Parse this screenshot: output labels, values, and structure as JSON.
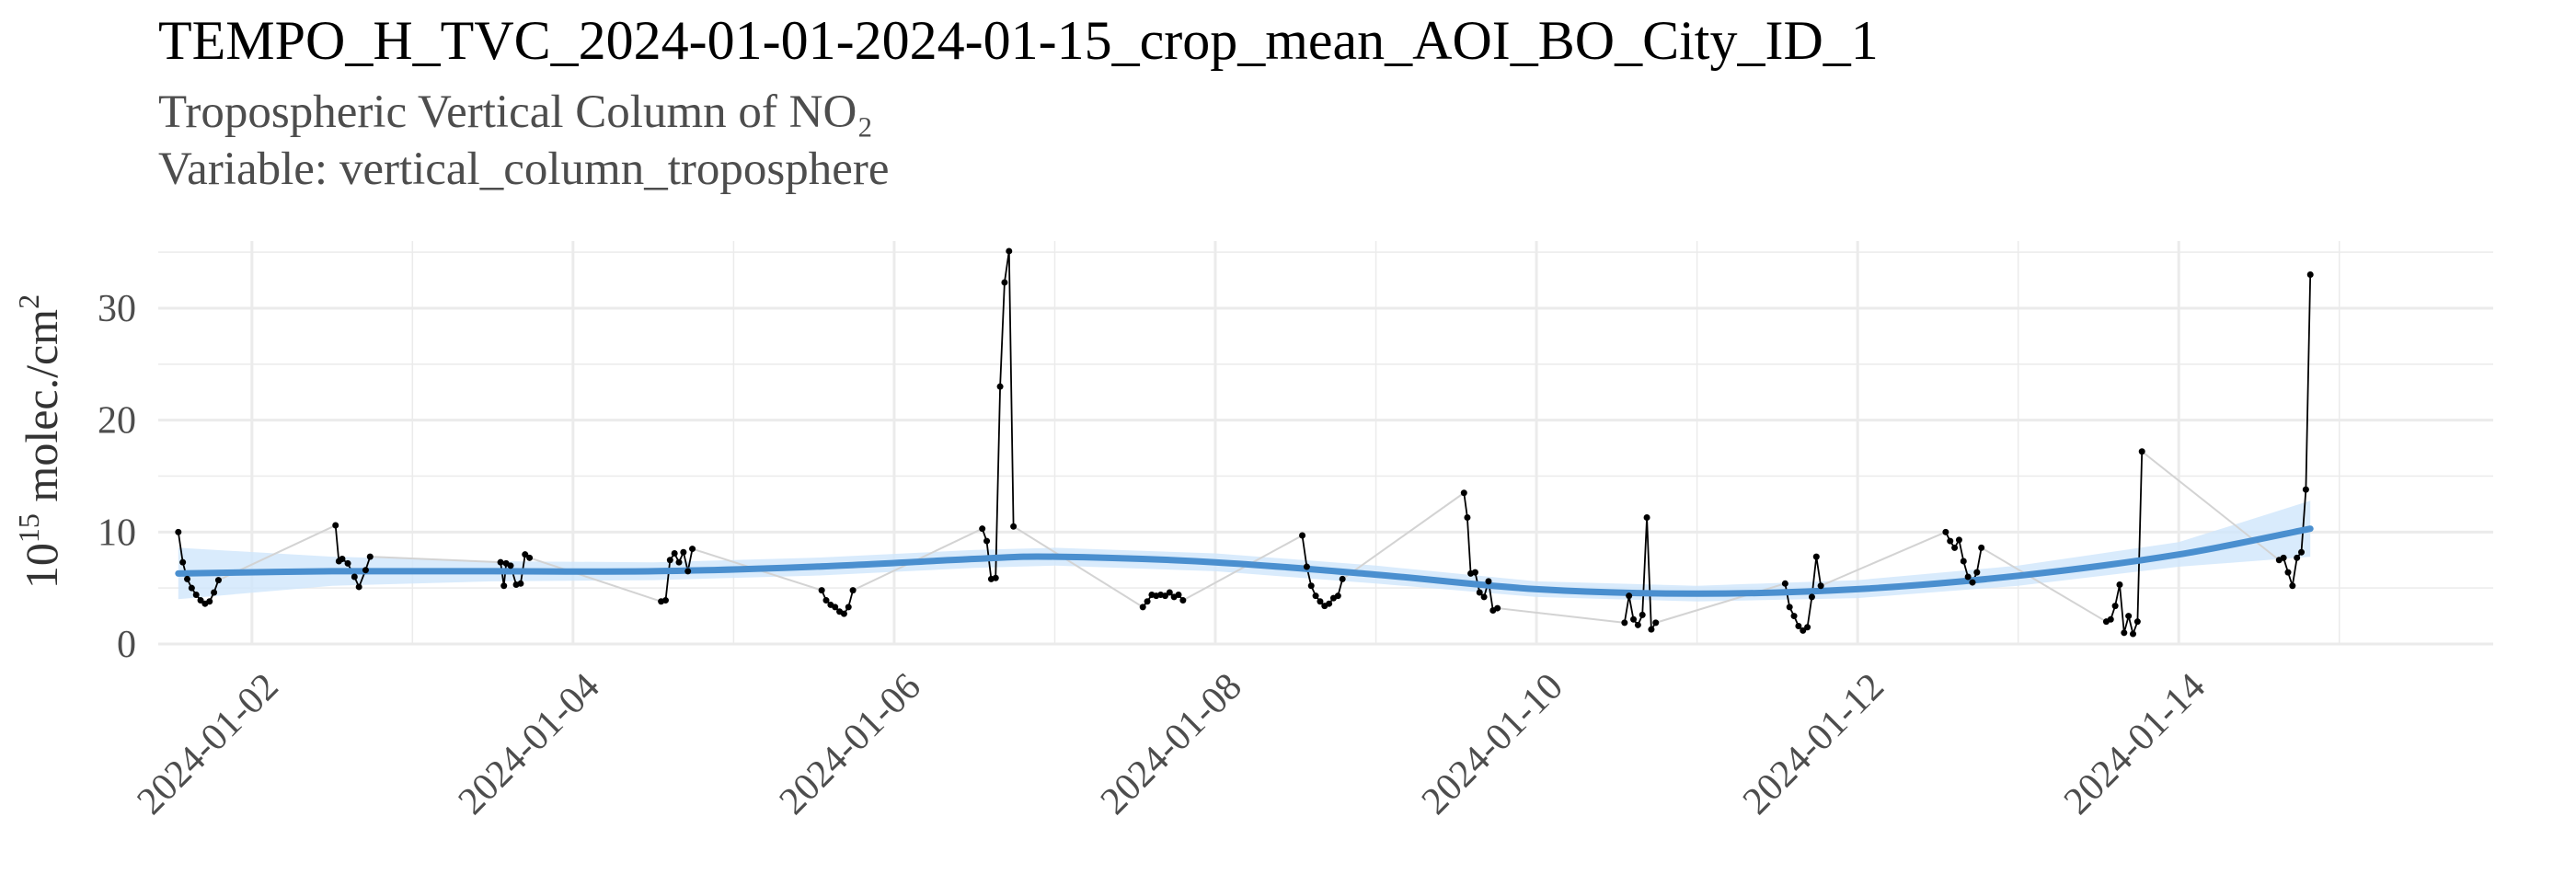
{
  "chart_data": {
    "type": "line",
    "title": "TEMPO_H_TVC_2024-01-01-2024-01-15_crop_mean_AOI_BO_City_ID_1",
    "subtitle_line1": "Tropospheric Vertical Column of NO₂",
    "subtitle_line2": "Variable: vertical_column_troposphere",
    "ylabel_base": "10",
    "ylabel_exp": "15",
    "ylabel_unit": " molec./cm",
    "ylabel_unit_exp": "2",
    "x_axis": {
      "type": "date",
      "min": "2024-01-01T10:00",
      "max": "2024-01-15T23:00"
    },
    "y_axis": {
      "min": 0,
      "max": 36,
      "ticks": [
        0,
        10,
        20,
        30
      ]
    },
    "x_ticks": [
      "2024-01-02",
      "2024-01-04",
      "2024-01-06",
      "2024-01-08",
      "2024-01-10",
      "2024-01-12",
      "2024-01-14"
    ],
    "colors": {
      "observed": "#000000",
      "gap": "#d3d3d3",
      "smooth": "#4a8fcf",
      "band": "#cfe6fb",
      "grid": "#ebebeb"
    },
    "series": [
      {
        "points": [
          [
            "2024-01-01T13:00",
            10.0
          ],
          [
            "2024-01-01T13:40",
            7.3
          ],
          [
            "2024-01-01T14:20",
            5.8
          ],
          [
            "2024-01-01T15:00",
            5.0
          ],
          [
            "2024-01-01T15:40",
            4.4
          ],
          [
            "2024-01-01T16:20",
            3.9
          ],
          [
            "2024-01-01T17:00",
            3.6
          ],
          [
            "2024-01-01T17:40",
            3.8
          ],
          [
            "2024-01-01T18:20",
            4.6
          ],
          [
            "2024-01-01T19:00",
            5.7
          ]
        ]
      },
      {
        "points": [
          [
            "2024-01-02T12:30",
            10.6
          ],
          [
            "2024-01-02T13:00",
            7.4
          ],
          [
            "2024-01-02T13:30",
            7.6
          ],
          [
            "2024-01-02T14:20",
            7.2
          ],
          [
            "2024-01-02T15:20",
            6.0
          ],
          [
            "2024-01-02T16:00",
            5.1
          ],
          [
            "2024-01-02T17:00",
            6.6
          ],
          [
            "2024-01-02T17:40",
            7.8
          ]
        ]
      },
      {
        "points": [
          [
            "2024-01-03T13:10",
            7.3
          ],
          [
            "2024-01-03T13:40",
            5.2
          ],
          [
            "2024-01-03T14:00",
            7.2
          ],
          [
            "2024-01-03T14:40",
            7.0
          ],
          [
            "2024-01-03T15:30",
            5.3
          ],
          [
            "2024-01-03T16:10",
            5.4
          ],
          [
            "2024-01-03T16:50",
            8.0
          ],
          [
            "2024-01-03T17:30",
            7.7
          ]
        ]
      },
      {
        "points": [
          [
            "2024-01-04T13:10",
            3.8
          ],
          [
            "2024-01-04T13:50",
            3.9
          ],
          [
            "2024-01-04T14:30",
            7.5
          ],
          [
            "2024-01-04T15:10",
            8.1
          ],
          [
            "2024-01-04T15:50",
            7.3
          ],
          [
            "2024-01-04T16:30",
            8.2
          ],
          [
            "2024-01-04T17:10",
            6.5
          ],
          [
            "2024-01-04T17:50",
            8.5
          ]
        ]
      },
      {
        "points": [
          [
            "2024-01-05T13:10",
            4.8
          ],
          [
            "2024-01-05T13:50",
            3.9
          ],
          [
            "2024-01-05T14:30",
            3.5
          ],
          [
            "2024-01-05T15:10",
            3.3
          ],
          [
            "2024-01-05T15:50",
            2.9
          ],
          [
            "2024-01-05T16:30",
            2.7
          ],
          [
            "2024-01-05T17:10",
            3.3
          ],
          [
            "2024-01-05T17:50",
            4.8
          ]
        ]
      },
      {
        "points": [
          [
            "2024-01-06T13:10",
            10.3
          ],
          [
            "2024-01-06T13:50",
            9.2
          ],
          [
            "2024-01-06T14:30",
            5.8
          ],
          [
            "2024-01-06T15:10",
            5.9
          ],
          [
            "2024-01-06T15:50",
            23.0
          ],
          [
            "2024-01-06T16:30",
            32.3
          ],
          [
            "2024-01-06T17:10",
            35.1
          ],
          [
            "2024-01-06T17:50",
            10.5
          ]
        ]
      },
      {
        "points": [
          [
            "2024-01-07T13:10",
            3.3
          ],
          [
            "2024-01-07T13:50",
            3.8
          ],
          [
            "2024-01-07T14:30",
            4.4
          ],
          [
            "2024-01-07T15:10",
            4.3
          ],
          [
            "2024-01-07T15:50",
            4.4
          ],
          [
            "2024-01-07T16:30",
            4.3
          ],
          [
            "2024-01-07T17:10",
            4.6
          ],
          [
            "2024-01-07T17:50",
            4.2
          ],
          [
            "2024-01-07T18:30",
            4.4
          ],
          [
            "2024-01-07T19:10",
            3.9
          ]
        ]
      },
      {
        "points": [
          [
            "2024-01-08T13:00",
            9.7
          ],
          [
            "2024-01-08T13:40",
            6.9
          ],
          [
            "2024-01-08T14:20",
            5.2
          ],
          [
            "2024-01-08T15:00",
            4.3
          ],
          [
            "2024-01-08T15:40",
            3.8
          ],
          [
            "2024-01-08T16:20",
            3.4
          ],
          [
            "2024-01-08T17:00",
            3.6
          ],
          [
            "2024-01-08T17:40",
            4.1
          ],
          [
            "2024-01-08T18:20",
            4.3
          ],
          [
            "2024-01-08T19:00",
            5.8
          ]
        ]
      },
      {
        "points": [
          [
            "2024-01-09T13:10",
            13.5
          ],
          [
            "2024-01-09T13:40",
            11.3
          ],
          [
            "2024-01-09T14:10",
            6.3
          ],
          [
            "2024-01-09T14:50",
            6.4
          ],
          [
            "2024-01-09T15:30",
            4.6
          ],
          [
            "2024-01-09T16:10",
            4.2
          ],
          [
            "2024-01-09T16:50",
            5.6
          ],
          [
            "2024-01-09T17:30",
            3.0
          ],
          [
            "2024-01-09T18:10",
            3.2
          ]
        ]
      },
      {
        "points": [
          [
            "2024-01-10T13:10",
            1.9
          ],
          [
            "2024-01-10T13:50",
            4.3
          ],
          [
            "2024-01-10T14:30",
            2.2
          ],
          [
            "2024-01-10T15:10",
            1.7
          ],
          [
            "2024-01-10T15:50",
            2.6
          ],
          [
            "2024-01-10T16:30",
            11.3
          ],
          [
            "2024-01-10T17:10",
            1.3
          ],
          [
            "2024-01-10T17:50",
            1.9
          ]
        ]
      },
      {
        "points": [
          [
            "2024-01-11T13:10",
            5.4
          ],
          [
            "2024-01-11T13:50",
            3.3
          ],
          [
            "2024-01-11T14:30",
            2.5
          ],
          [
            "2024-01-11T15:10",
            1.6
          ],
          [
            "2024-01-11T15:50",
            1.2
          ],
          [
            "2024-01-11T16:30",
            1.5
          ],
          [
            "2024-01-11T17:10",
            4.2
          ],
          [
            "2024-01-11T17:50",
            7.8
          ],
          [
            "2024-01-11T18:30",
            5.2
          ]
        ]
      },
      {
        "points": [
          [
            "2024-01-12T13:10",
            10.0
          ],
          [
            "2024-01-12T13:50",
            9.2
          ],
          [
            "2024-01-12T14:30",
            8.6
          ],
          [
            "2024-01-12T15:10",
            9.3
          ],
          [
            "2024-01-12T15:50",
            7.4
          ],
          [
            "2024-01-12T16:30",
            6.0
          ],
          [
            "2024-01-12T17:10",
            5.5
          ],
          [
            "2024-01-12T17:50",
            6.4
          ],
          [
            "2024-01-12T18:30",
            8.6
          ]
        ]
      },
      {
        "points": [
          [
            "2024-01-13T13:10",
            2.0
          ],
          [
            "2024-01-13T13:50",
            2.2
          ],
          [
            "2024-01-13T14:30",
            3.4
          ],
          [
            "2024-01-13T15:10",
            5.3
          ],
          [
            "2024-01-13T15:50",
            1.0
          ],
          [
            "2024-01-13T16:30",
            2.5
          ],
          [
            "2024-01-13T17:10",
            0.9
          ],
          [
            "2024-01-13T17:50",
            2.0
          ],
          [
            "2024-01-13T18:30",
            17.2
          ]
        ]
      },
      {
        "points": [
          [
            "2024-01-14T15:00",
            7.5
          ],
          [
            "2024-01-14T15:40",
            7.7
          ],
          [
            "2024-01-14T16:20",
            6.4
          ],
          [
            "2024-01-14T17:00",
            5.2
          ],
          [
            "2024-01-14T17:40",
            7.7
          ],
          [
            "2024-01-14T18:20",
            8.2
          ],
          [
            "2024-01-14T19:00",
            13.8
          ],
          [
            "2024-01-14T19:40",
            33.0
          ]
        ]
      }
    ],
    "smooth": {
      "x": [
        "2024-01-01T13:00",
        "2024-01-02T12:00",
        "2024-01-03T12:00",
        "2024-01-04T12:00",
        "2024-01-05T12:00",
        "2024-01-06T12:00",
        "2024-01-07T00:00",
        "2024-01-08T00:00",
        "2024-01-09T00:00",
        "2024-01-10T00:00",
        "2024-01-11T00:00",
        "2024-01-12T00:00",
        "2024-01-13T00:00",
        "2024-01-14T00:00",
        "2024-01-14T19:40"
      ],
      "y": [
        6.3,
        6.5,
        6.5,
        6.5,
        6.9,
        7.6,
        7.8,
        7.3,
        6.2,
        4.9,
        4.5,
        4.9,
        6.1,
        8.0,
        10.3
      ],
      "lower": [
        4.0,
        5.2,
        5.6,
        5.7,
        6.1,
        6.8,
        7.0,
        6.5,
        5.4,
        4.2,
        3.8,
        4.1,
        5.2,
        6.9,
        7.8
      ],
      "upper": [
        8.6,
        7.8,
        7.4,
        7.3,
        7.7,
        8.4,
        8.6,
        8.1,
        7.0,
        5.6,
        5.2,
        5.7,
        7.0,
        9.1,
        12.8
      ]
    }
  }
}
